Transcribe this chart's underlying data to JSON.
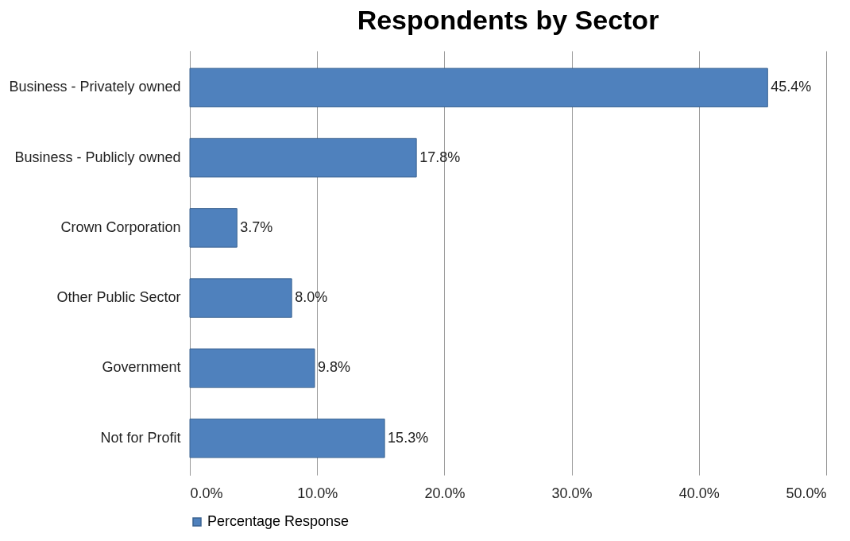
{
  "chart_data": {
    "type": "bar",
    "title": "Respondents by Sector",
    "orientation": "horizontal",
    "categories": [
      "Business - Privately owned",
      "Business - Publicly owned",
      "Crown Corporation",
      "Other Public Sector",
      "Government",
      "Not for Profit"
    ],
    "series": [
      {
        "name": "Percentage Response",
        "color": "#4f81bd",
        "values": [
          45.4,
          17.8,
          3.7,
          8.0,
          9.8,
          15.3
        ],
        "value_labels": [
          "45.4%",
          "17.8%",
          "3.7%",
          "8.0%",
          "9.8%",
          "15.3%"
        ]
      }
    ],
    "xlim": [
      0,
      50
    ],
    "xticks": [
      {
        "value": 0,
        "label": "0.0%"
      },
      {
        "value": 10,
        "label": "10.0%"
      },
      {
        "value": 20,
        "label": "20.0%"
      },
      {
        "value": 30,
        "label": "30.0%"
      },
      {
        "value": 40,
        "label": "40.0%"
      },
      {
        "value": 50,
        "label": "50.0%"
      }
    ],
    "grid": "x",
    "legend": "bottom"
  }
}
